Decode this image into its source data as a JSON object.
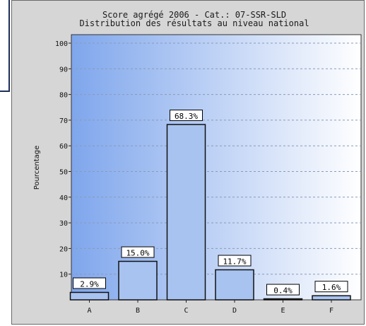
{
  "chart_data": {
    "type": "bar",
    "title": "Score agrégé 2006 - Cat.: 07-SSR-SLD",
    "subtitle": "Distribution des résultats au niveau national",
    "xlabel": "",
    "ylabel": "Pourcentage",
    "categories": [
      "A",
      "B",
      "C",
      "D",
      "E",
      "F"
    ],
    "values": [
      2.9,
      15.0,
      68.3,
      11.7,
      0.4,
      1.6
    ],
    "data_labels": [
      "2.9%",
      "15.0%",
      "68.3%",
      "11.7%",
      "0.4%",
      "1.6%"
    ],
    "ylim": [
      0,
      100
    ],
    "yticks": [
      10,
      20,
      30,
      40,
      50,
      60,
      70,
      80,
      90,
      100
    ],
    "ytick_labels": [
      "10",
      "20",
      "30",
      "40",
      "50",
      "60",
      "70",
      "80",
      "90",
      "100"
    ],
    "grid": "horizontal dashed",
    "colors": {
      "bar_fill": "#a8c3f0",
      "bar_stroke": "#111111",
      "plot_gradient_left": "#7fa6ec",
      "plot_gradient_right": "#ffffff",
      "frame_background": "#d6d6d6"
    }
  }
}
